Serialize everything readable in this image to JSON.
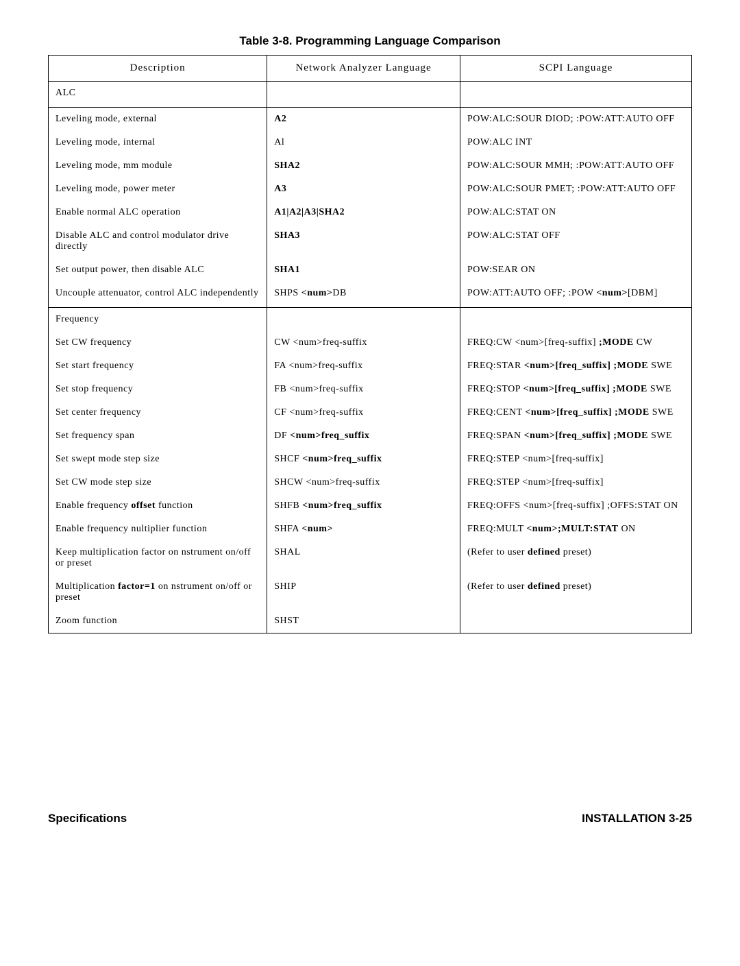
{
  "title": "Table 3-8. Programming Language Comparison",
  "headers": {
    "col1": "Description",
    "col2": "Network Analyzer Language",
    "col3": "SCPI Language"
  },
  "rows": [
    {
      "type": "section",
      "desc": "ALC",
      "na": "",
      "scpi": ""
    },
    {
      "desc": "Leveling mode, external",
      "na": "<span class='b'>A2</span>",
      "scpi": "POW:ALC:SOUR DIOD; :POW:ATT:AUTO OFF"
    },
    {
      "desc": "Leveling mode, internal",
      "na": "Al",
      "scpi": "POW:ALC INT"
    },
    {
      "desc": "Leveling mode, mm module",
      "na": "<span class='b'>SHA2</span>",
      "scpi": "POW:ALC:SOUR MMH; :POW:ATT:AUTO  OFF"
    },
    {
      "desc": "Leveling mode, power meter",
      "na": "<span class='b'>A3</span>",
      "scpi": "POW:ALC:SOUR PMET; :POW:ATT:AUTO OFF"
    },
    {
      "desc": "Enable normal ALC operation",
      "na": "<span class='b'>A1|A2|A3|SHA2</span>",
      "scpi": "POW:ALC:STAT ON"
    },
    {
      "desc": "Disable ALC and control modulator drive directly",
      "na": "<span class='b'>SHA3</span>",
      "scpi": "POW:ALC:STAT OFF"
    },
    {
      "desc": "Set output power, then disable ALC",
      "na": "<span class='b'>SHA1</span>",
      "scpi": "POW:SEAR ON"
    },
    {
      "type": "section",
      "desc": "Uncouple attenuator, control ALC independently",
      "na": "SHPS <span class='b'>&lt;num&gt;</span>DB",
      "scpi": "POW:ATT:AUTO OFF; :POW <span class='b'>&lt;num&gt;</span>[DBM]"
    },
    {
      "type": "section-top",
      "desc": "Frequency",
      "na": "",
      "scpi": ""
    },
    {
      "desc": "Set CW frequency",
      "na": "CW &lt;num&gt;freq-suffix",
      "scpi": "FREQ:CW &lt;num&gt;[freq-suffix] <span class='b'>;MODE</span> CW"
    },
    {
      "desc": "Set start frequency",
      "na": "FA &lt;num&gt;freq-suffix",
      "scpi": "FREQ:STAR <span class='b'>&lt;num&gt;[freq_suffix]</span> <span class='b'>;MODE</span> SWE"
    },
    {
      "desc": "Set stop frequency",
      "na": "FB &lt;num&gt;freq-suffix",
      "scpi": "FREQ:STOP <span class='b'>&lt;num&gt;[freq_suffix]</span> <span class='b'>;MODE</span> SWE"
    },
    {
      "desc": "Set center frequency",
      "na": "CF &lt;num&gt;freq-suffix",
      "scpi": "FREQ:CENT <span class='b'>&lt;num&gt;[freq_suffix]</span> <span class='b'>;MODE</span> SWE"
    },
    {
      "desc": "Set frequency span",
      "na": "DF <span class='b'>&lt;num&gt;freq_suffix</span>",
      "scpi": "FREQ:SPAN <span class='b'>&lt;num&gt;[freq_suffix]</span> <span class='b'>;MODE</span> SWE"
    },
    {
      "desc": "Set swept mode step size",
      "na": "SHCF <span class='b'>&lt;num&gt;freq_suffix</span>",
      "scpi": "FREQ:STEP &lt;num&gt;[freq-suffix]"
    },
    {
      "desc": "Set CW mode step size",
      "na": "SHCW &lt;num&gt;freq-suffix",
      "scpi": "FREQ:STEP &lt;num&gt;[freq-suffix]"
    },
    {
      "desc": "Enable frequency <span class='b'>offset</span> function",
      "na": "SHFB <span class='b'>&lt;num&gt;freq_suffix</span>",
      "scpi": "FREQ:OFFS &lt;num&gt;[freq-suffix] ;OFFS:STAT ON"
    },
    {
      "desc": "Enable frequency nultiplier function",
      "na": "SHFA <span class='b'>&lt;num&gt;</span>",
      "scpi": "FREQ:MULT <span class='b'>&lt;num&gt;;MULT:STAT</span> ON"
    },
    {
      "desc": "Keep multiplication factor on nstrument on/off or preset",
      "na": "SHAL",
      "scpi": "(Refer to user <span class='b'>defined</span> preset)"
    },
    {
      "desc": "Multiplication <span class='b'>factor=1</span> on nstrument on/off or preset",
      "na": "SHIP",
      "scpi": "(Refer to user <span class='b'>defined</span> preset)"
    },
    {
      "desc": "Zoom function",
      "na": "SHST",
      "scpi": ""
    }
  ],
  "footer": {
    "left": "Specifications",
    "right": "INSTALLATION 3-25"
  }
}
